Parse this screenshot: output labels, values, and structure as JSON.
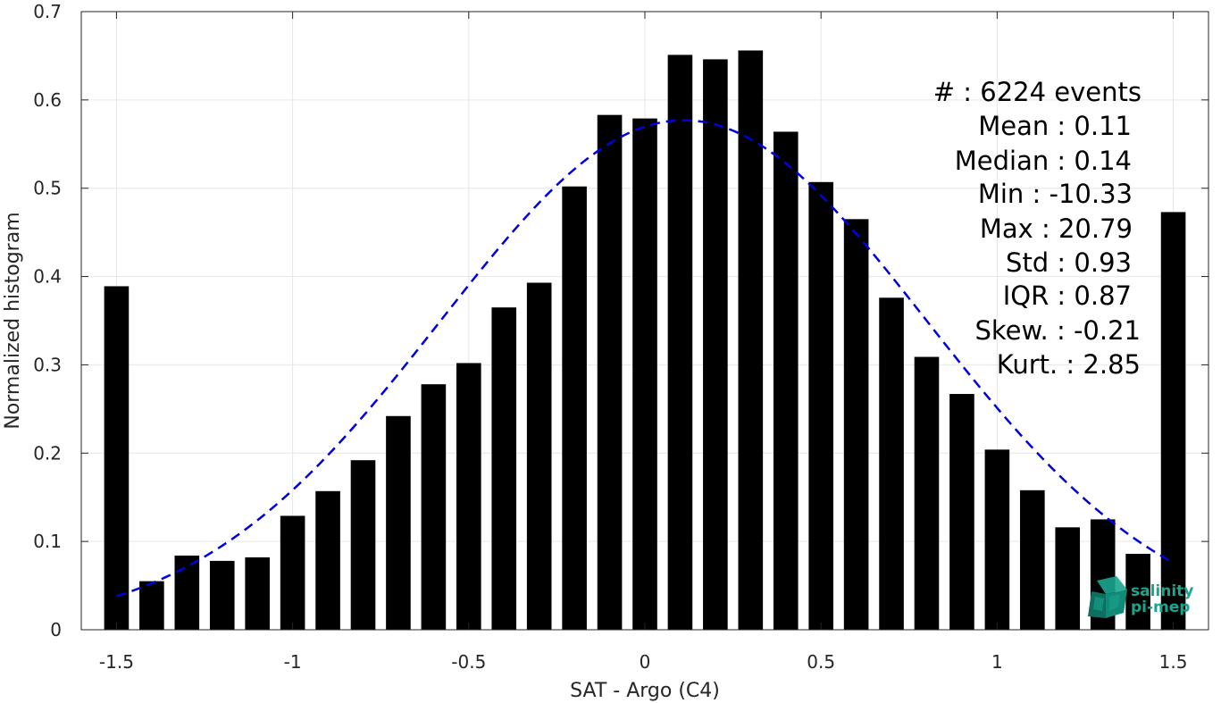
{
  "chart_data": {
    "type": "bar",
    "title": "",
    "xlabel": "SAT - Argo (C4)",
    "ylabel": "Normalized histogram",
    "xlim": [
      -1.6,
      1.6
    ],
    "ylim": [
      0,
      0.7
    ],
    "xticks": [
      -1.5,
      -1,
      -0.5,
      0,
      0.5,
      1,
      1.5
    ],
    "xtick_labels": [
      "-1.5",
      "-1",
      "-0.5",
      "0",
      "0.5",
      "1",
      "1.5"
    ],
    "yticks": [
      0,
      0.1,
      0.2,
      0.3,
      0.4,
      0.5,
      0.6,
      0.7
    ],
    "ytick_labels": [
      "0",
      "0.1",
      "0.2",
      "0.3",
      "0.4",
      "0.5",
      "0.6",
      "0.7"
    ],
    "grid": true,
    "bar_color": "#000000",
    "bar_width": 0.07,
    "x": [
      -1.5,
      -1.4,
      -1.3,
      -1.2,
      -1.1,
      -1.0,
      -0.9,
      -0.8,
      -0.7,
      -0.6,
      -0.5,
      -0.4,
      -0.3,
      -0.2,
      -0.1,
      0.0,
      0.1,
      0.2,
      0.3,
      0.4,
      0.5,
      0.6,
      0.7,
      0.8,
      0.9,
      1.0,
      1.1,
      1.2,
      1.3,
      1.4,
      1.5
    ],
    "values": [
      0.389,
      0.055,
      0.084,
      0.078,
      0.082,
      0.129,
      0.157,
      0.192,
      0.242,
      0.278,
      0.302,
      0.365,
      0.393,
      0.502,
      0.583,
      0.579,
      0.651,
      0.646,
      0.656,
      0.564,
      0.507,
      0.465,
      0.376,
      0.309,
      0.267,
      0.204,
      0.158,
      0.116,
      0.125,
      0.086,
      0.473
    ],
    "fit_curve": {
      "type": "gaussian",
      "style": "dashed",
      "color": "#0000e0",
      "mean": 0.11,
      "std": 0.69,
      "peak": 0.577,
      "x_range": [
        -1.5,
        1.5
      ]
    }
  },
  "stats": [
    {
      "label": "#  : 6224 events"
    },
    {
      "label": "Mean : 0.11"
    },
    {
      "label": "Median : 0.14"
    },
    {
      "label": "Min : -10.33"
    },
    {
      "label": "Max : 20.79"
    },
    {
      "label": "Std : 0.93"
    },
    {
      "label": "IQR : 0.87"
    },
    {
      "label": "Skew. : -0.21"
    },
    {
      "label": "Kurt. : 2.85"
    }
  ],
  "logo": {
    "line1": "salinity",
    "line2": "pi-mep",
    "colors": [
      "#1aa58f",
      "#0e6f61"
    ]
  }
}
